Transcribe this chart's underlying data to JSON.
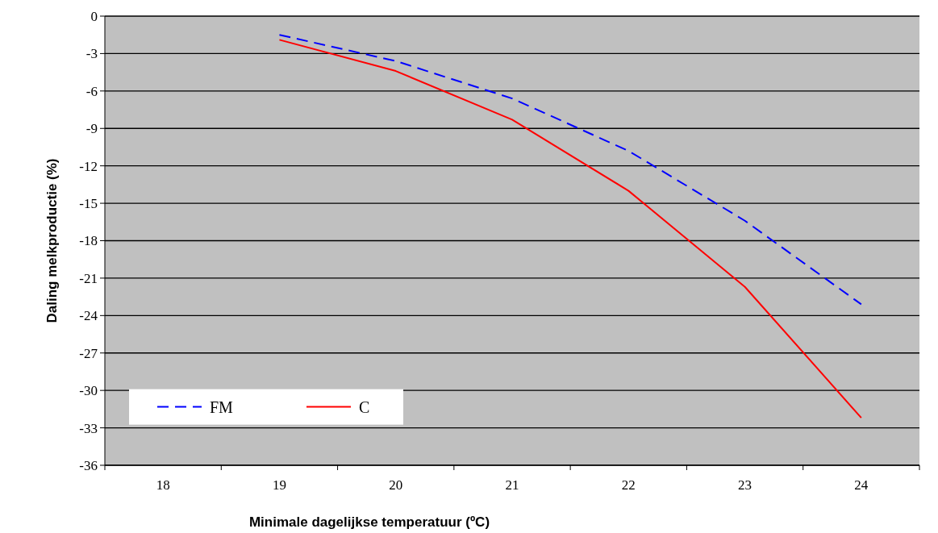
{
  "chart_data": {
    "type": "line",
    "xlabel": "Minimale dagelijkse temperatuur (ºC)",
    "ylabel": "Daling melkproductie (%)",
    "categories": [
      "18",
      "19",
      "20",
      "21",
      "22",
      "23",
      "24"
    ],
    "series": [
      {
        "name": "FM",
        "color": "#0000ff",
        "line_style": "dashed",
        "values": [
          null,
          -1.5,
          -3.6,
          -6.6,
          -10.8,
          -16.4,
          -23.1
        ]
      },
      {
        "name": "C",
        "color": "#ff0000",
        "line_style": "solid",
        "values": [
          null,
          -1.9,
          -4.4,
          -8.3,
          -14.0,
          -21.7,
          -32.2
        ]
      }
    ],
    "ylim": [
      -36,
      0
    ],
    "yticks": [
      -36,
      -33,
      -30,
      -27,
      -24,
      -21,
      -18,
      -15,
      -12,
      -9,
      -6,
      -3,
      0
    ],
    "grid": "y",
    "legend": "bottom left",
    "marker": "none"
  }
}
